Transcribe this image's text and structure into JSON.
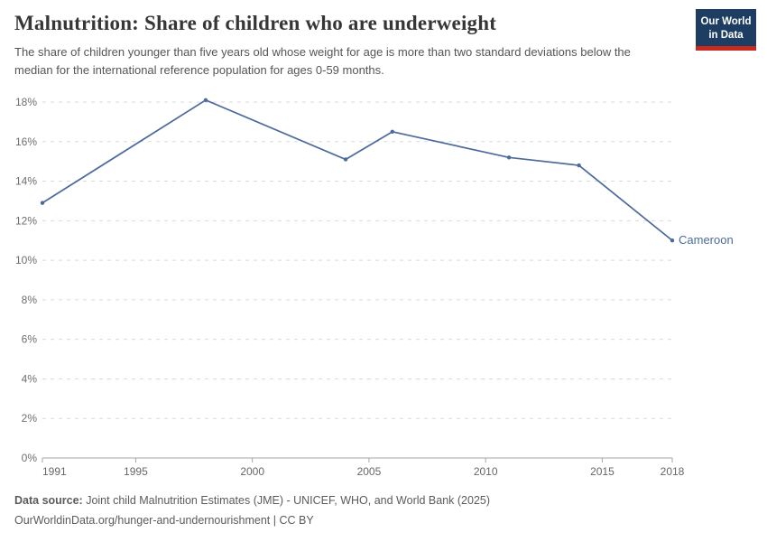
{
  "header": {
    "title": "Malnutrition: Share of children who are underweight",
    "subtitle": "The share of children younger than five years old whose weight for age is more than two standard deviations below the median for the international reference population for ages 0-59 months.",
    "logo": {
      "line1": "Our World",
      "line2": "in Data",
      "bg_color": "#1d3d63",
      "stripe_color": "#c7291d"
    }
  },
  "chart_data": {
    "type": "line",
    "title": "Malnutrition: Share of children who are underweight",
    "xlabel": "",
    "ylabel": "",
    "xlim": [
      1991,
      2018
    ],
    "ylim": [
      0,
      18
    ],
    "grid": true,
    "x_ticks": [
      1991,
      1995,
      2000,
      2005,
      2010,
      2015,
      2018
    ],
    "y_ticks": [
      0,
      2,
      4,
      6,
      8,
      10,
      12,
      14,
      16,
      18
    ],
    "y_tick_suffix": "%",
    "legend_position": "end-of-line-label",
    "series": [
      {
        "name": "Cameroon",
        "color": "#4C6A9C",
        "x": [
          1991,
          1998,
          2004,
          2006,
          2011,
          2014,
          2018
        ],
        "values": [
          12.9,
          18.1,
          15.1,
          16.5,
          15.2,
          14.8,
          11.0
        ]
      }
    ]
  },
  "footer": {
    "data_source_label": "Data source:",
    "data_source_text": " Joint child Malnutrition Estimates (JME) - UNICEF, WHO, and World Bank (2025)",
    "attribution": "OurWorldinData.org/hunger-and-undernourishment | CC BY"
  }
}
